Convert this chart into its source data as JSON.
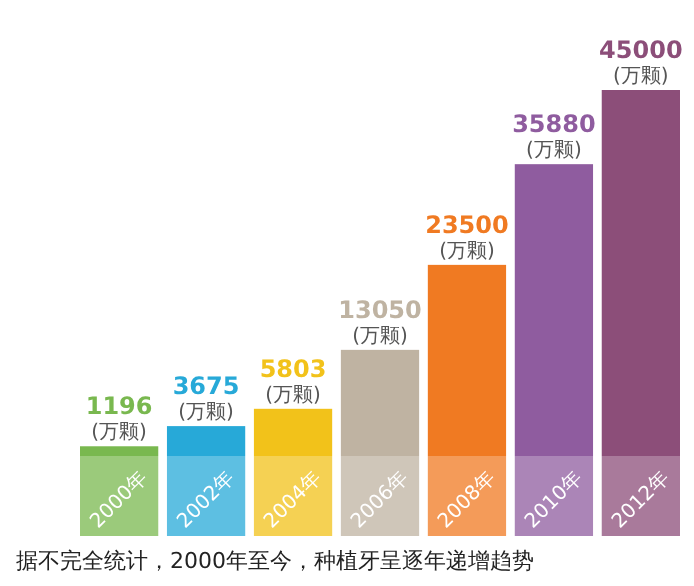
{
  "chart_data": {
    "type": "bar",
    "categories": [
      "2000年",
      "2002年",
      "2004年",
      "2006年",
      "2008年",
      "2010年",
      "2012年"
    ],
    "values": [
      1196,
      3675,
      5803,
      13050,
      23500,
      35880,
      45000
    ],
    "colors": [
      "#79b84f",
      "#27a9d8",
      "#f2c21a",
      "#bfb3a2",
      "#f07a22",
      "#8f5c9f",
      "#8c4e79"
    ],
    "value_labels": [
      "1196(万颗)",
      "3675(万颗)",
      "5803(万颗)",
      "13050(万颗)",
      "23500(万颗)",
      "35880(万颗)",
      "45000(万颗)"
    ],
    "annotations": [
      "据不完全统计，2000年至今，种植牙呈逐年递增趋势"
    ]
  }
}
